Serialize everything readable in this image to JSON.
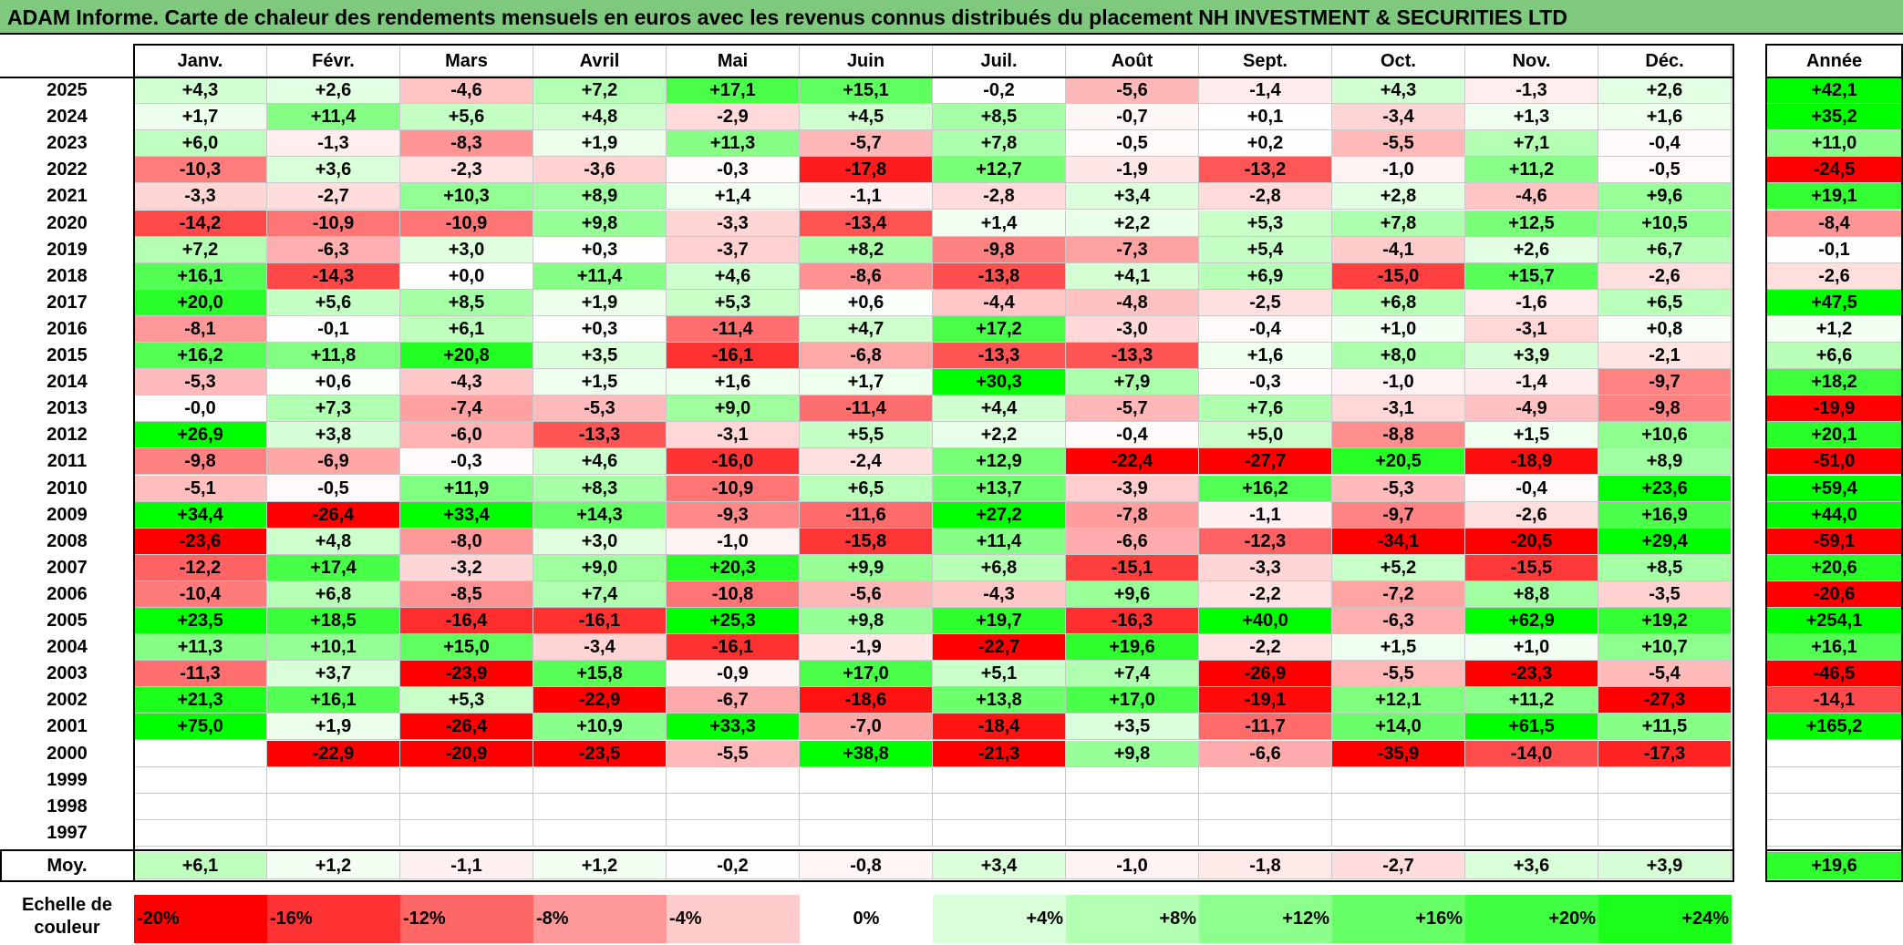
{
  "title": "ADAM Informe. Carte de chaleur des rendements mensuels en euros avec les revenus connus distribués du placement NH INVESTMENT & SECURITIES LTD",
  "chart_data": {
    "type": "heatmap",
    "months": [
      "Janv.",
      "Févr.",
      "Mars",
      "Avril",
      "Mai",
      "Juin",
      "Juil.",
      "Août",
      "Sept.",
      "Oct.",
      "Nov.",
      "Déc."
    ],
    "year_header": "Année",
    "years": [
      "2025",
      "2024",
      "2023",
      "2022",
      "2021",
      "2020",
      "2019",
      "2018",
      "2017",
      "2016",
      "2015",
      "2014",
      "2013",
      "2012",
      "2011",
      "2010",
      "2009",
      "2008",
      "2007",
      "2006",
      "2005",
      "2004",
      "2003",
      "2002",
      "2001",
      "2000",
      "1999",
      "1998",
      "1997"
    ],
    "rows": [
      {
        "year": "2025",
        "values": [
          "+4,3",
          "+2,6",
          "-4,6",
          "+7,2",
          "+17,1",
          "+15,1",
          "-0,2",
          "-5,6",
          "-1,4",
          "+4,3",
          "-1,3",
          "+2,6"
        ],
        "annual": "+42,1"
      },
      {
        "year": "2024",
        "values": [
          "+1,7",
          "+11,4",
          "+5,6",
          "+4,8",
          "-2,9",
          "+4,5",
          "+8,5",
          "-0,7",
          "+0,1",
          "-3,4",
          "+1,3",
          "+1,6"
        ],
        "annual": "+35,2"
      },
      {
        "year": "2023",
        "values": [
          "+6,0",
          "-1,3",
          "-8,3",
          "+1,9",
          "+11,3",
          "-5,7",
          "+7,8",
          "-0,5",
          "+0,2",
          "-5,5",
          "+7,1",
          "-0,4"
        ],
        "annual": "+11,0"
      },
      {
        "year": "2022",
        "values": [
          "-10,3",
          "+3,6",
          "-2,3",
          "-3,6",
          "-0,3",
          "-17,8",
          "+12,7",
          "-1,9",
          "-13,2",
          "-1,0",
          "+11,2",
          "-0,5"
        ],
        "annual": "-24,5"
      },
      {
        "year": "2021",
        "values": [
          "-3,3",
          "-2,7",
          "+10,3",
          "+8,9",
          "+1,4",
          "-1,1",
          "-2,8",
          "+3,4",
          "-2,8",
          "+2,8",
          "-4,6",
          "+9,6"
        ],
        "annual": "+19,1"
      },
      {
        "year": "2020",
        "values": [
          "-14,2",
          "-10,9",
          "-10,9",
          "+9,8",
          "-3,3",
          "-13,4",
          "+1,4",
          "+2,2",
          "+5,3",
          "+7,8",
          "+12,5",
          "+10,5"
        ],
        "annual": "-8,4"
      },
      {
        "year": "2019",
        "values": [
          "+7,2",
          "-6,3",
          "+3,0",
          "+0,3",
          "-3,7",
          "+8,2",
          "-9,8",
          "-7,3",
          "+5,4",
          "-4,1",
          "+2,6",
          "+6,7"
        ],
        "annual": "-0,1"
      },
      {
        "year": "2018",
        "values": [
          "+16,1",
          "-14,3",
          "+0,0",
          "+11,4",
          "+4,6",
          "-8,6",
          "-13,8",
          "+4,1",
          "+6,9",
          "-15,0",
          "+15,7",
          "-2,6"
        ],
        "annual": "-2,6"
      },
      {
        "year": "2017",
        "values": [
          "+20,0",
          "+5,6",
          "+8,5",
          "+1,9",
          "+5,3",
          "+0,6",
          "-4,4",
          "-4,8",
          "-2,5",
          "+6,8",
          "-1,6",
          "+6,5"
        ],
        "annual": "+47,5"
      },
      {
        "year": "2016",
        "values": [
          "-8,1",
          "-0,1",
          "+6,1",
          "+0,3",
          "-11,4",
          "+4,7",
          "+17,2",
          "-3,0",
          "-0,4",
          "+1,0",
          "-3,1",
          "+0,8"
        ],
        "annual": "+1,2"
      },
      {
        "year": "2015",
        "values": [
          "+16,2",
          "+11,8",
          "+20,8",
          "+3,5",
          "-16,1",
          "-6,8",
          "-13,3",
          "-13,3",
          "+1,6",
          "+8,0",
          "+3,9",
          "-2,1"
        ],
        "annual": "+6,6"
      },
      {
        "year": "2014",
        "values": [
          "-5,3",
          "+0,6",
          "-4,3",
          "+1,5",
          "+1,6",
          "+1,7",
          "+30,3",
          "+7,9",
          "-0,3",
          "-1,0",
          "-1,4",
          "-9,7"
        ],
        "annual": "+18,2"
      },
      {
        "year": "2013",
        "values": [
          "-0,0",
          "+7,3",
          "-7,4",
          "-5,3",
          "+9,0",
          "-11,4",
          "+4,4",
          "-5,7",
          "+7,6",
          "-3,1",
          "-4,9",
          "-9,8"
        ],
        "annual": "-19,9"
      },
      {
        "year": "2012",
        "values": [
          "+26,9",
          "+3,8",
          "-6,0",
          "-13,3",
          "-3,1",
          "+5,5",
          "+2,2",
          "-0,4",
          "+5,0",
          "-8,8",
          "+1,5",
          "+10,6"
        ],
        "annual": "+20,1"
      },
      {
        "year": "2011",
        "values": [
          "-9,8",
          "-6,9",
          "-0,3",
          "+4,6",
          "-16,0",
          "-2,4",
          "+12,9",
          "-22,4",
          "-27,7",
          "+20,5",
          "-18,9",
          "+8,9"
        ],
        "annual": "-51,0"
      },
      {
        "year": "2010",
        "values": [
          "-5,1",
          "-0,5",
          "+11,9",
          "+8,3",
          "-10,9",
          "+6,5",
          "+13,7",
          "-3,9",
          "+16,2",
          "-5,3",
          "-0,4",
          "+23,6"
        ],
        "annual": "+59,4"
      },
      {
        "year": "2009",
        "values": [
          "+34,4",
          "-26,4",
          "+33,4",
          "+14,3",
          "-9,3",
          "-11,6",
          "+27,2",
          "-7,8",
          "-1,1",
          "-9,7",
          "-2,6",
          "+16,9"
        ],
        "annual": "+44,0"
      },
      {
        "year": "2008",
        "values": [
          "-23,6",
          "+4,8",
          "-8,0",
          "+3,0",
          "-1,0",
          "-15,8",
          "+11,4",
          "-6,6",
          "-12,3",
          "-34,1",
          "-20,5",
          "+29,4"
        ],
        "annual": "-59,1"
      },
      {
        "year": "2007",
        "values": [
          "-12,2",
          "+17,4",
          "-3,2",
          "+9,0",
          "+20,3",
          "+9,9",
          "+6,8",
          "-15,1",
          "-3,3",
          "+5,2",
          "-15,5",
          "+8,5"
        ],
        "annual": "+20,6"
      },
      {
        "year": "2006",
        "values": [
          "-10,4",
          "+6,8",
          "-8,5",
          "+7,4",
          "-10,8",
          "-5,6",
          "-4,3",
          "+9,6",
          "-2,2",
          "-7,2",
          "+8,8",
          "-3,5"
        ],
        "annual": "-20,6"
      },
      {
        "year": "2005",
        "values": [
          "+23,5",
          "+18,5",
          "-16,4",
          "-16,1",
          "+25,3",
          "+9,8",
          "+19,7",
          "-16,3",
          "+40,0",
          "-6,3",
          "+62,9",
          "+19,2"
        ],
        "annual": "+254,1"
      },
      {
        "year": "2004",
        "values": [
          "+11,3",
          "+10,1",
          "+15,0",
          "-3,4",
          "-16,1",
          "-1,9",
          "-22,7",
          "+19,6",
          "-2,2",
          "+1,5",
          "+1,0",
          "+10,7"
        ],
        "annual": "+16,1"
      },
      {
        "year": "2003",
        "values": [
          "-11,3",
          "+3,7",
          "-23,9",
          "+15,8",
          "-0,9",
          "+17,0",
          "+5,1",
          "+7,4",
          "-26,9",
          "-5,5",
          "-23,3",
          "-5,4"
        ],
        "annual": "-46,5"
      },
      {
        "year": "2002",
        "values": [
          "+21,3",
          "+16,1",
          "+5,3",
          "-22,9",
          "-6,7",
          "-18,6",
          "+13,8",
          "+17,0",
          "-19,1",
          "+12,1",
          "+11,2",
          "-27,3"
        ],
        "annual": "-14,1"
      },
      {
        "year": "2001",
        "values": [
          "+75,0",
          "+1,9",
          "-26,4",
          "+10,9",
          "+33,3",
          "-7,0",
          "-18,4",
          "+3,5",
          "-11,7",
          "+14,0",
          "+61,5",
          "+11,5"
        ],
        "annual": "+165,2"
      },
      {
        "year": "2000",
        "values": [
          "",
          "-22,9",
          "-20,9",
          "-23,5",
          "-5,5",
          "+38,8",
          "-21,3",
          "+9,8",
          "-6,6",
          "-35,9",
          "-14,0",
          "-17,3"
        ],
        "annual": ""
      },
      {
        "year": "1999",
        "values": [
          "",
          "",
          "",
          "",
          "",
          "",
          "",
          "",
          "",
          "",
          "",
          ""
        ],
        "annual": ""
      },
      {
        "year": "1998",
        "values": [
          "",
          "",
          "",
          "",
          "",
          "",
          "",
          "",
          "",
          "",
          "",
          ""
        ],
        "annual": ""
      },
      {
        "year": "1997",
        "values": [
          "",
          "",
          "",
          "",
          "",
          "",
          "",
          "",
          "",
          "",
          "",
          ""
        ],
        "annual": ""
      }
    ],
    "average": {
      "label": "Moy.",
      "values": [
        "+6,1",
        "+1,2",
        "-1,1",
        "+1,2",
        "-0,2",
        "-0,8",
        "+3,4",
        "-1,0",
        "-1,8",
        "-2,7",
        "+3,6",
        "+3,9"
      ],
      "annual": "+19,6"
    },
    "scale": {
      "label_line1": "Echelle de",
      "label_line2": "couleur",
      "steps": [
        {
          "label": "-20%",
          "value": -20,
          "color": "#ff0000"
        },
        {
          "label": "-16%",
          "value": -16,
          "color": "#ff3333"
        },
        {
          "label": "-12%",
          "value": -12,
          "color": "#ff6666"
        },
        {
          "label": "-8%",
          "value": -8,
          "color": "#ff9999"
        },
        {
          "label": "-4%",
          "value": -4,
          "color": "#ffcccc"
        },
        {
          "label": "0%",
          "value": 0,
          "color": "#ffffff"
        },
        {
          "label": "+4%",
          "value": 4,
          "color": "#d9ffd9"
        },
        {
          "label": "+8%",
          "value": 8,
          "color": "#b3ffb3"
        },
        {
          "label": "+12%",
          "value": 12,
          "color": "#8cff8c"
        },
        {
          "label": "+16%",
          "value": 16,
          "color": "#66ff66"
        },
        {
          "label": "+20%",
          "value": 20,
          "color": "#40ff40"
        },
        {
          "label": "+24%",
          "value": 24,
          "color": "#1aff1a"
        }
      ]
    }
  }
}
